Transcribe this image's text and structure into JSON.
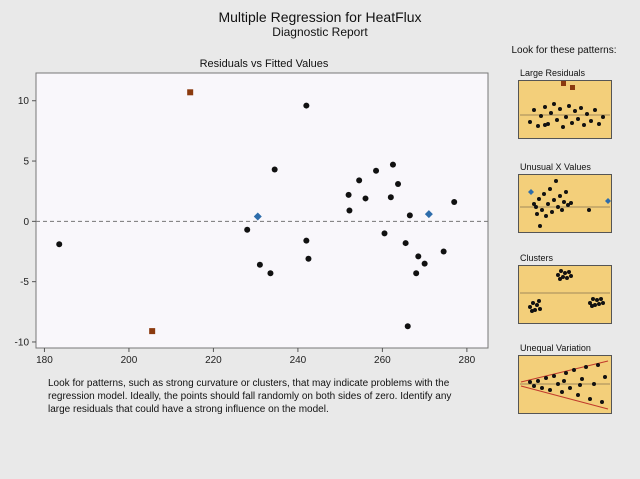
{
  "header": {
    "title": "Multiple Regression for HeatFlux",
    "subtitle": "Diagnostic Report"
  },
  "chart_data": {
    "type": "scatter",
    "title": "Residuals vs Fitted Values",
    "xlabel": "",
    "ylabel": "",
    "xlim": [
      178,
      285
    ],
    "ylim": [
      -10.5,
      12.3
    ],
    "xticks": [
      180,
      200,
      220,
      240,
      260,
      280
    ],
    "yticks": [
      -10,
      -5,
      0,
      5,
      10
    ],
    "reference_line": 0,
    "colors": {
      "normal": "#111111",
      "large_residual": "#8b3a0e",
      "unusual_x": "#2e6dab"
    },
    "series": [
      {
        "name": "Residuals",
        "marker": "circle",
        "points": [
          [
            183.5,
            -1.9
          ],
          [
            228,
            -0.7
          ],
          [
            231,
            -3.6
          ],
          [
            233.5,
            -4.3
          ],
          [
            234.5,
            4.3
          ],
          [
            242,
            9.6
          ],
          [
            242,
            -1.6
          ],
          [
            242.5,
            -3.1
          ],
          [
            252,
            2.2
          ],
          [
            252.2,
            0.9
          ],
          [
            254.5,
            3.4
          ],
          [
            256,
            1.9
          ],
          [
            258.5,
            4.2
          ],
          [
            260.5,
            -1.0
          ],
          [
            262,
            2.0
          ],
          [
            262.5,
            4.7
          ],
          [
            263.7,
            3.1
          ],
          [
            265.5,
            -1.8
          ],
          [
            266,
            -8.7
          ],
          [
            266.5,
            0.5
          ],
          [
            268,
            -4.3
          ],
          [
            268.5,
            -2.9
          ],
          [
            270,
            -3.5
          ],
          [
            274.5,
            -2.5
          ],
          [
            277,
            1.6
          ]
        ]
      },
      {
        "name": "Large Residuals",
        "marker": "square",
        "points": [
          [
            205.5,
            -9.1
          ],
          [
            214.5,
            10.7
          ]
        ]
      },
      {
        "name": "Unusual X Values",
        "marker": "diamond",
        "points": [
          [
            230.5,
            0.4
          ],
          [
            271,
            0.6
          ]
        ]
      }
    ]
  },
  "note": "Look for patterns, such as strong curvature or clusters, that may indicate problems with the regression model. Ideally, the points should fall randomly on both sides of zero. Identify any large residuals that could have a strong influence on the model.",
  "patterns": {
    "title": "Look for these patterns:",
    "items": [
      {
        "label": "Large Residuals"
      },
      {
        "label": "Unusual X Values"
      },
      {
        "label": "Clusters"
      },
      {
        "label": "Unequal Variation"
      }
    ]
  }
}
